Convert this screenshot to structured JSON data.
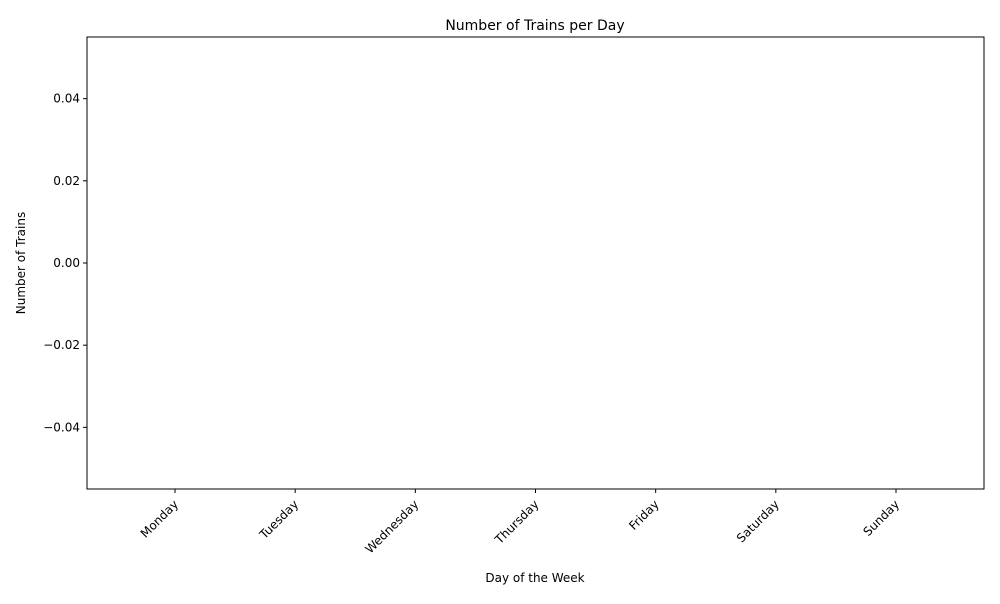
{
  "chart_data": {
    "type": "bar",
    "title": "Number of Trains per Day",
    "xlabel": "Day of the Week",
    "ylabel": "Number of Trains",
    "categories": [
      "Monday",
      "Tuesday",
      "Wednesday",
      "Thursday",
      "Friday",
      "Saturday",
      "Sunday"
    ],
    "values": [
      0,
      0,
      0,
      0,
      0,
      0,
      0
    ],
    "ylim": [
      -0.055,
      0.055
    ],
    "y_ticks": [
      {
        "value": 0.04,
        "label": "0.04"
      },
      {
        "value": 0.02,
        "label": "0.02"
      },
      {
        "value": 0.0,
        "label": "0.00"
      },
      {
        "value": -0.02,
        "label": "−0.02"
      },
      {
        "value": -0.04,
        "label": "−0.04"
      }
    ],
    "grid": false,
    "x_tick_rotation": "45 degrees",
    "colors": {
      "axis": "#000000",
      "background": "#ffffff",
      "bar": "#1f77b4"
    }
  }
}
